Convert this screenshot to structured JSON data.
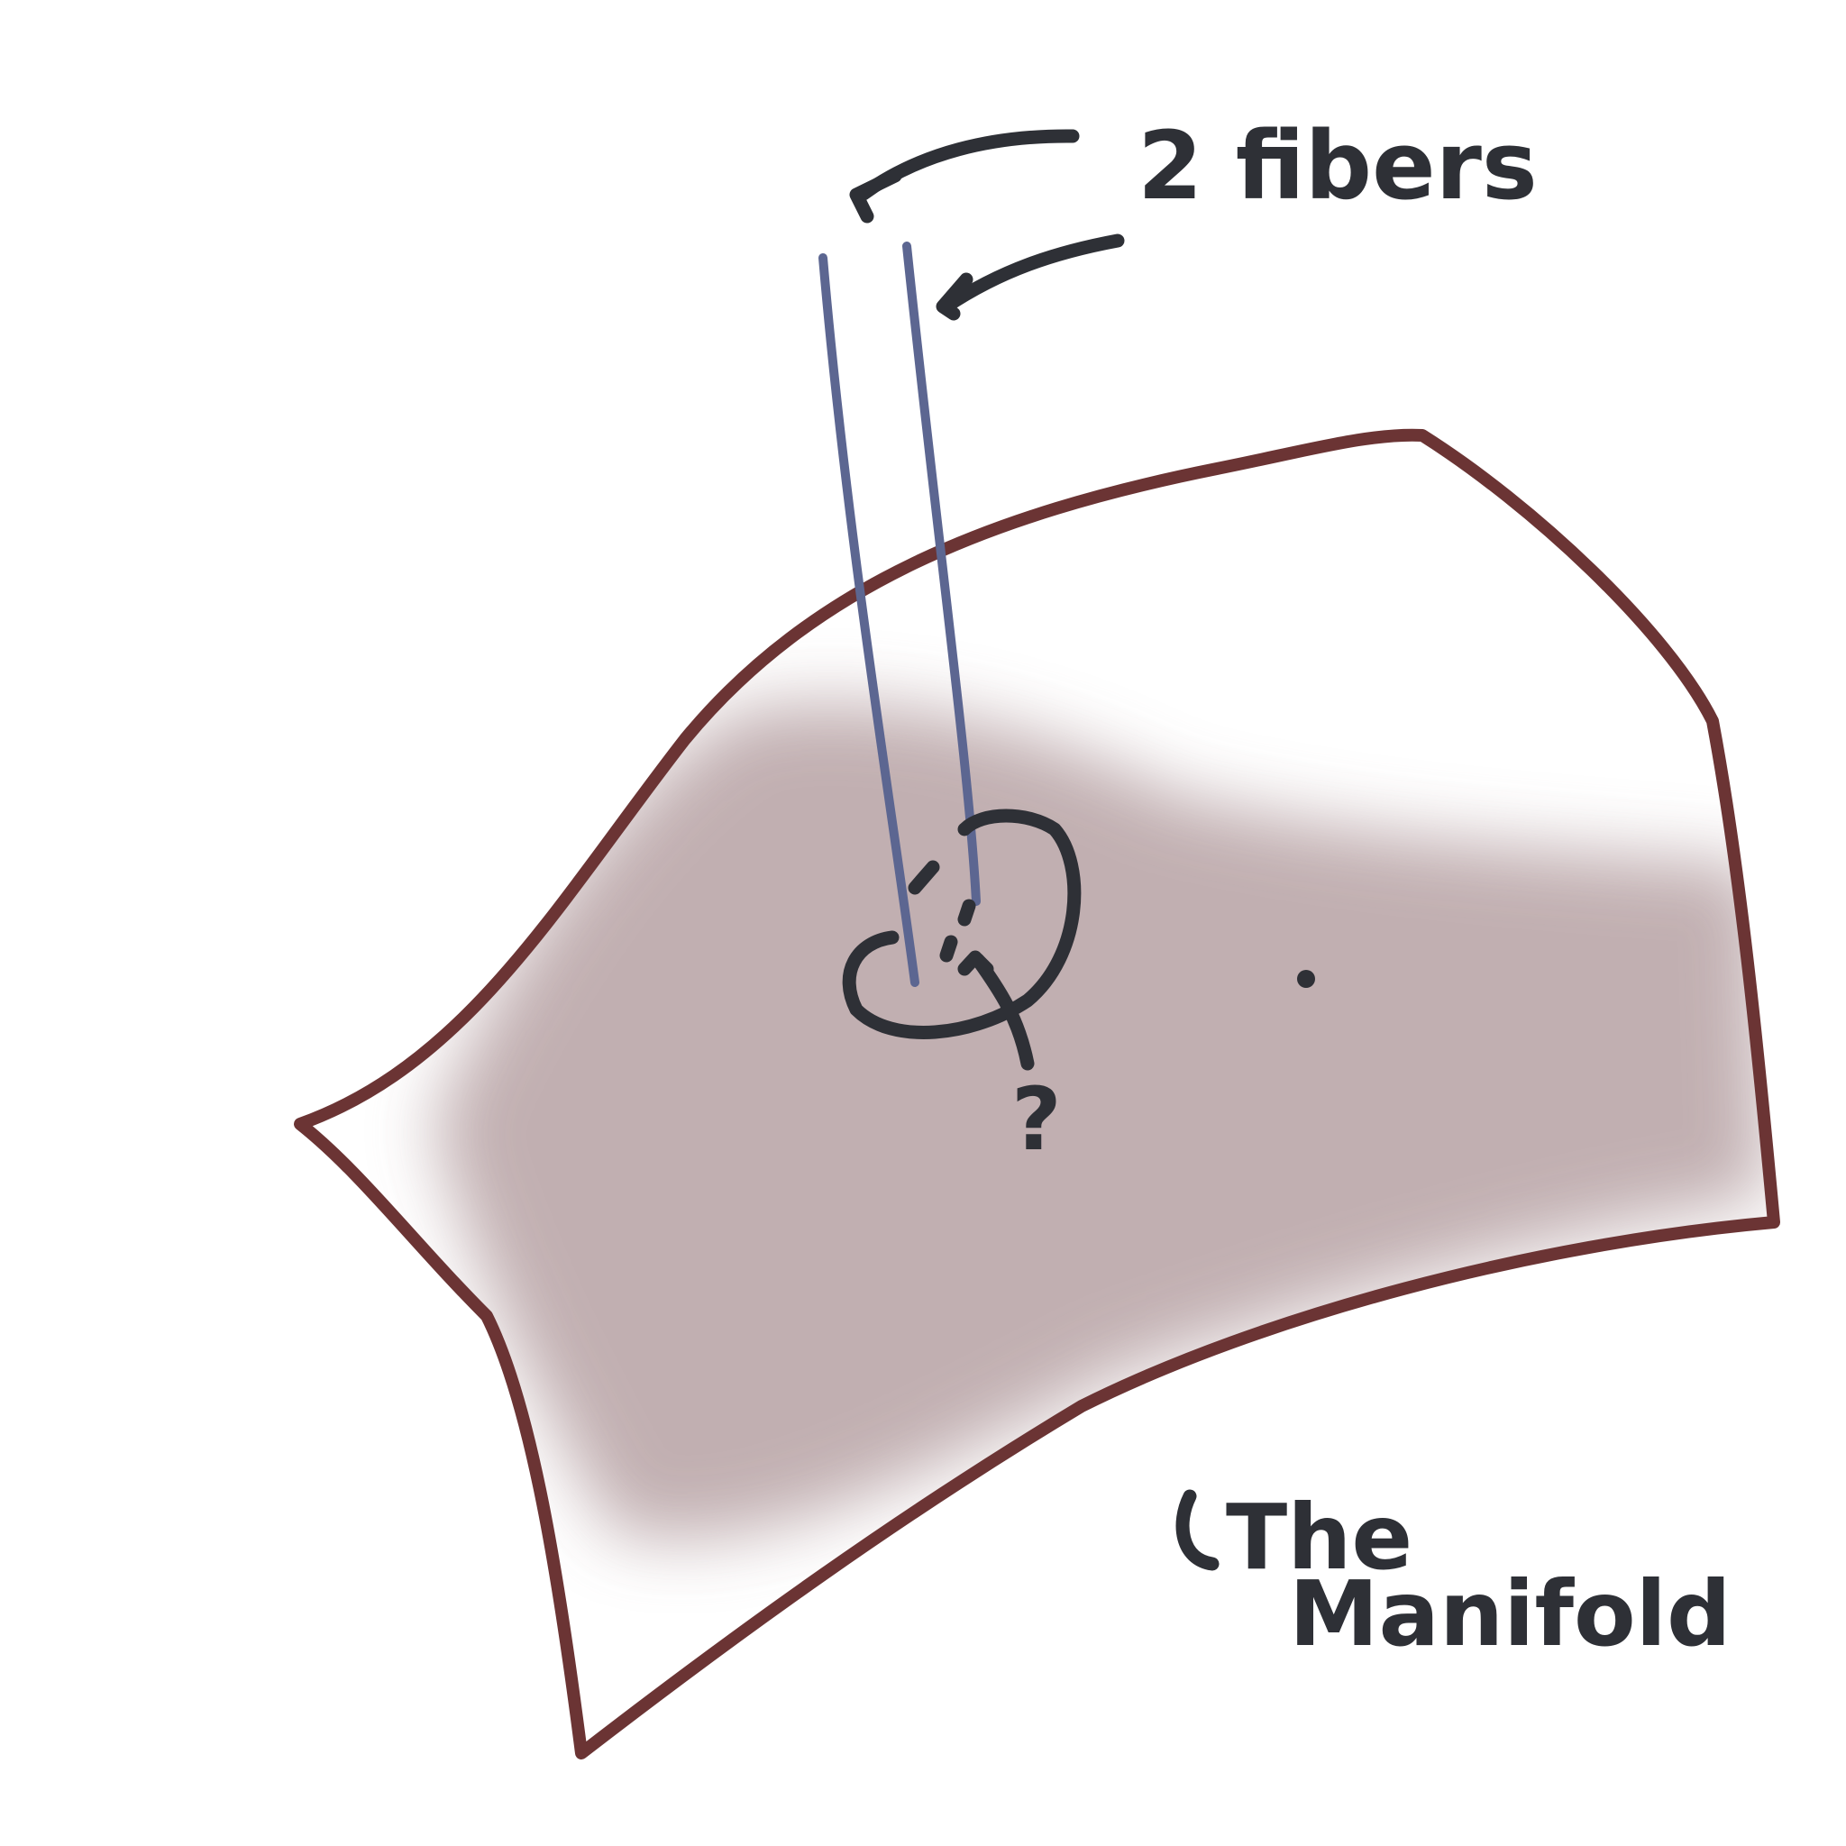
{
  "labels": {
    "fibers": "2 fibers",
    "question": "?",
    "manifold_line1": "The",
    "manifold_line2": "Manifold"
  },
  "colors": {
    "background": "#ffffff",
    "manifold_outline": "#6b3434",
    "manifold_fill": "#b7a2a4",
    "fiber": "#5c6691",
    "ink": "#2e3036"
  }
}
